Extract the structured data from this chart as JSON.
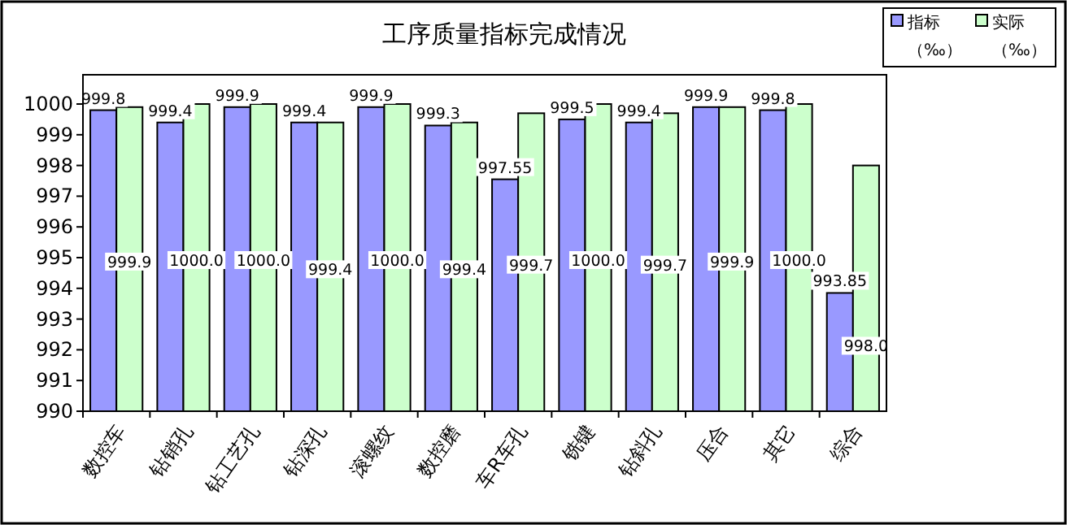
{
  "chart_data": {
    "type": "bar",
    "title": "工序质量指标完成情况",
    "categories": [
      "数控车",
      "钻销孔",
      "钻工艺孔",
      "钻深孔",
      "滚螺纹",
      "数控磨",
      "车R车孔",
      "铣键",
      "钻斜孔",
      "压合",
      "其它",
      "综合"
    ],
    "series": [
      {
        "name": "指标（‰）",
        "color": "#9999ff",
        "values": [
          999.8,
          999.4,
          999.9,
          999.4,
          999.9,
          999.3,
          997.55,
          999.5,
          999.4,
          999.9,
          999.8,
          993.85
        ],
        "value_labels": [
          "999.8",
          "999.4",
          "999.9",
          "999.4",
          "999.9",
          "999.3",
          "997.55",
          "999.5",
          "999.4",
          "999.9",
          "999.8",
          "993.85"
        ]
      },
      {
        "name": "实际（‰）",
        "color": "#ccffcc",
        "values": [
          999.9,
          1000.0,
          1000.0,
          999.4,
          1000.0,
          999.4,
          999.7,
          1000.0,
          999.7,
          999.9,
          1000.0,
          998.0
        ],
        "value_labels": [
          "999.9",
          "1000.0",
          "1000.0",
          "999.4",
          "1000.0",
          "999.4",
          "999.7",
          "1000.0",
          "999.7",
          "999.9",
          "1000.0",
          "998.0"
        ]
      }
    ],
    "ylim": [
      990,
      1000
    ],
    "yticks": [
      990,
      991,
      992,
      993,
      994,
      995,
      996,
      997,
      998,
      999,
      1000
    ],
    "grid": false,
    "legend": "top right"
  }
}
